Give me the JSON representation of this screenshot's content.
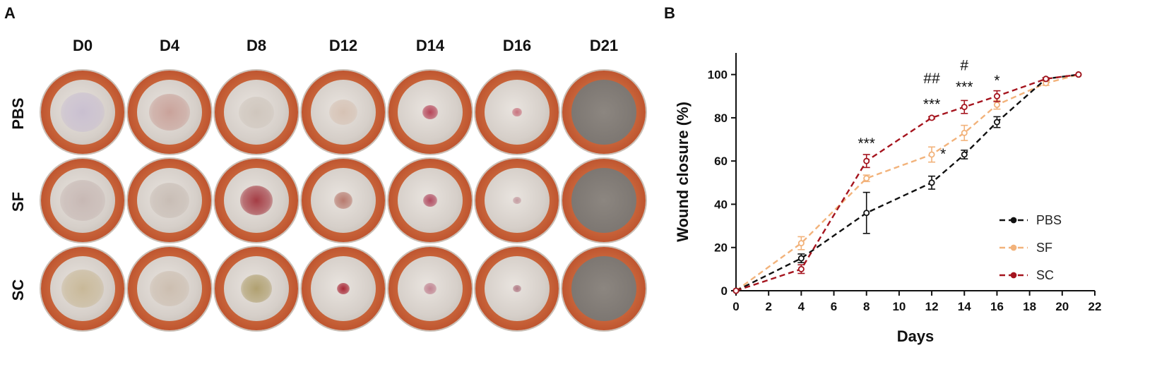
{
  "panel_a": {
    "letter": "A",
    "columns": [
      "D0",
      "D4",
      "D8",
      "D12",
      "D14",
      "D16",
      "D21"
    ],
    "rows": [
      "PBS",
      "SF",
      "SC"
    ]
  },
  "panel_b": {
    "letter": "B"
  },
  "colors": {
    "PBS": "#111111",
    "SF": "#f2b27a",
    "SC": "#a5141e"
  },
  "chart_data": {
    "type": "line",
    "xlabel": "Days",
    "ylabel": "Wound closure (%)",
    "xlim": [
      0,
      22
    ],
    "ylim": [
      0,
      110
    ],
    "xticks": [
      "0",
      "2",
      "4",
      "6",
      "8",
      "10",
      "12",
      "14",
      "16",
      "18",
      "20",
      "22"
    ],
    "yticks": [
      "0",
      "20",
      "40",
      "60",
      "80",
      "100"
    ],
    "legend_position": "lower-right",
    "series": [
      {
        "name": "PBS",
        "x": [
          0,
          4,
          8,
          12,
          14,
          16,
          19,
          21
        ],
        "y": [
          0,
          15,
          36,
          50,
          63,
          78,
          98,
          100
        ],
        "err": [
          0,
          2,
          9.5,
          3,
          2,
          2.5,
          0.5,
          0
        ]
      },
      {
        "name": "SF",
        "x": [
          0,
          4,
          8,
          12,
          14,
          16,
          19,
          21
        ],
        "y": [
          0,
          22,
          52,
          63,
          73,
          86,
          96,
          100
        ],
        "err": [
          0,
          3,
          1.5,
          3.5,
          3.5,
          2,
          1,
          0
        ]
      },
      {
        "name": "SC",
        "x": [
          0,
          4,
          8,
          12,
          14,
          16,
          19,
          21
        ],
        "y": [
          0,
          10,
          60,
          80,
          85,
          90,
          98,
          100
        ],
        "err": [
          0,
          2,
          3,
          0.5,
          3,
          2.5,
          0.5,
          0
        ]
      }
    ],
    "annotations": [
      {
        "text": "***",
        "x": 8,
        "y": 66
      },
      {
        "text": "##",
        "x": 12,
        "y": 96
      },
      {
        "text": "***",
        "x": 12,
        "y": 84
      },
      {
        "text": "*",
        "x": 12.7,
        "y": 61
      },
      {
        "text": "#",
        "x": 14,
        "y": 102
      },
      {
        "text": "***",
        "x": 14,
        "y": 92
      },
      {
        "text": "*",
        "x": 16,
        "y": 95
      }
    ]
  }
}
